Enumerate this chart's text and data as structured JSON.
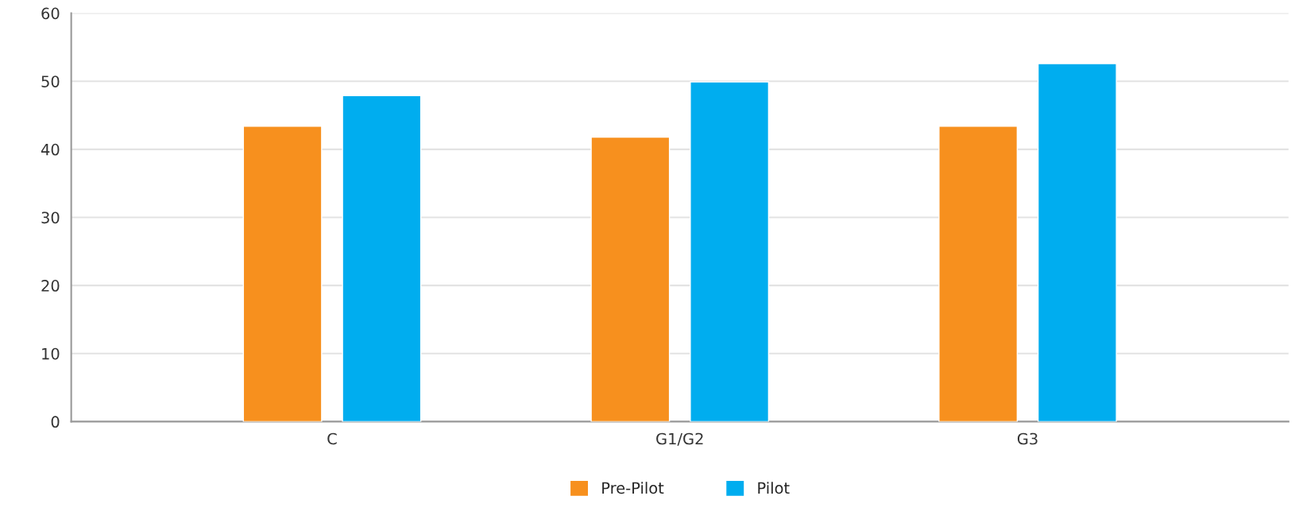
{
  "chart_data": {
    "type": "bar",
    "categories": [
      "C",
      "G1/G2",
      "G3"
    ],
    "series": [
      {
        "name": "Pre-Pilot",
        "color": "#f7901e",
        "values": [
          43.4,
          41.8,
          43.4
        ]
      },
      {
        "name": "Pilot",
        "color": "#00adef",
        "values": [
          47.9,
          49.9,
          52.6
        ]
      }
    ],
    "ylim": [
      0,
      60
    ],
    "yticks": [
      0,
      10,
      20,
      30,
      40,
      50,
      60
    ],
    "grid": "y",
    "legend": "bottom"
  }
}
